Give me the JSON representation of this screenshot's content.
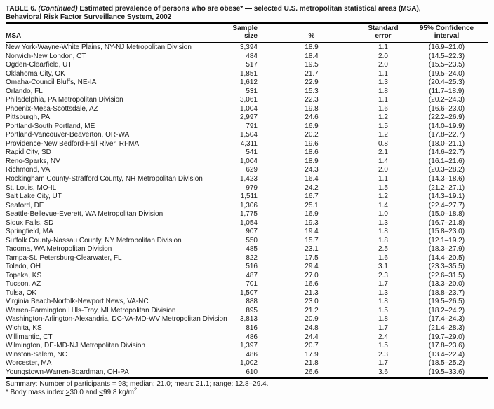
{
  "title": {
    "prefix": "TABLE 6. ",
    "continued": "(Continued)",
    "line1_rest": " Estimated prevalence of persons who are obese* — selected U.S. metropolitan statistical areas (MSA),",
    "line2": "Behavioral Risk Factor Surveillance System, 2002"
  },
  "table": {
    "columns": {
      "msa": "MSA",
      "sample_line1": "Sample",
      "sample_line2": "size",
      "percent": "%",
      "se_line1": "Standard",
      "se_line2": "error",
      "ci_line1": "95% Confidence",
      "ci_line2": "interval"
    },
    "rows": [
      {
        "msa": "New York-Wayne-White Plains, NY-NJ Metropolitan Division",
        "sample_size": "3,394",
        "percent": "18.9",
        "standard_error": "1.1",
        "ci": "(16.9–21.0)"
      },
      {
        "msa": "Norwich-New London, CT",
        "sample_size": "484",
        "percent": "18.4",
        "standard_error": "2.0",
        "ci": "(14.5–22.3)"
      },
      {
        "msa": "Ogden-Clearfield, UT",
        "sample_size": "517",
        "percent": "19.5",
        "standard_error": "2.0",
        "ci": "(15.5–23.5)"
      },
      {
        "msa": "Oklahoma City, OK",
        "sample_size": "1,851",
        "percent": "21.7",
        "standard_error": "1.1",
        "ci": "(19.5–24.0)"
      },
      {
        "msa": "Omaha-Council Bluffs, NE-IA",
        "sample_size": "1,612",
        "percent": "22.9",
        "standard_error": "1.3",
        "ci": "(20.4–25.3)"
      },
      {
        "msa": "Orlando, FL",
        "sample_size": "531",
        "percent": "15.3",
        "standard_error": "1.8",
        "ci": "(11.7–18.9)"
      },
      {
        "msa": "Philadelphia, PA Metropolitan Division",
        "sample_size": "3,061",
        "percent": "22.3",
        "standard_error": "1.1",
        "ci": "(20.2–24.3)"
      },
      {
        "msa": "Phoenix-Mesa-Scottsdale, AZ",
        "sample_size": "1,004",
        "percent": "19.8",
        "standard_error": "1.6",
        "ci": "(16.6–23.0)"
      },
      {
        "msa": "Pittsburgh, PA",
        "sample_size": "2,997",
        "percent": "24.6",
        "standard_error": "1.2",
        "ci": "(22.2–26.9)"
      },
      {
        "msa": "Portland-South Portland, ME",
        "sample_size": "791",
        "percent": "16.9",
        "standard_error": "1.5",
        "ci": "(14.0–19.9)"
      },
      {
        "msa": "Portland-Vancouver-Beaverton, OR-WA",
        "sample_size": "1,504",
        "percent": "20.2",
        "standard_error": "1.2",
        "ci": "(17.8–22.7)"
      },
      {
        "msa": "Providence-New Bedford-Fall River, RI-MA",
        "sample_size": "4,311",
        "percent": "19.6",
        "standard_error": "0.8",
        "ci": "(18.0–21.1)"
      },
      {
        "msa": "Rapid City, SD",
        "sample_size": "541",
        "percent": "18.6",
        "standard_error": "2.1",
        "ci": "(14.6–22.7)"
      },
      {
        "msa": "Reno-Sparks, NV",
        "sample_size": "1,004",
        "percent": "18.9",
        "standard_error": "1.4",
        "ci": "(16.1–21.6)"
      },
      {
        "msa": "Richmond, VA",
        "sample_size": "629",
        "percent": "24.3",
        "standard_error": "2.0",
        "ci": "(20.3–28.2)"
      },
      {
        "msa": "Rockingham County-Strafford County, NH Metropolitan Division",
        "sample_size": "1,423",
        "percent": "16.4",
        "standard_error": "1.1",
        "ci": "(14.3–18.6)"
      },
      {
        "msa": "St. Louis, MO-IL",
        "sample_size": "979",
        "percent": "24.2",
        "standard_error": "1.5",
        "ci": "(21.2–27.1)"
      },
      {
        "msa": "Salt Lake City, UT",
        "sample_size": "1,511",
        "percent": "16.7",
        "standard_error": "1.2",
        "ci": "(14.3–19.1)"
      },
      {
        "msa": "Seaford, DE",
        "sample_size": "1,306",
        "percent": "25.1",
        "standard_error": "1.4",
        "ci": "(22.4–27.7)"
      },
      {
        "msa": "Seattle-Bellevue-Everett, WA Metropolitan Division",
        "sample_size": "1,775",
        "percent": "16.9",
        "standard_error": "1.0",
        "ci": "(15.0–18.8)"
      },
      {
        "msa": "Sioux Falls, SD",
        "sample_size": "1,054",
        "percent": "19.3",
        "standard_error": "1.3",
        "ci": "(16.7–21.8)"
      },
      {
        "msa": "Springfield, MA",
        "sample_size": "907",
        "percent": "19.4",
        "standard_error": "1.8",
        "ci": "(15.8–23.0)"
      },
      {
        "msa": "Suffolk County-Nassau County, NY Metropolitan Division",
        "sample_size": "550",
        "percent": "15.7",
        "standard_error": "1.8",
        "ci": "(12.1–19.2)"
      },
      {
        "msa": "Tacoma, WA Metropolitan Division",
        "sample_size": "485",
        "percent": "23.1",
        "standard_error": "2.5",
        "ci": "(18.3–27.9)"
      },
      {
        "msa": "Tampa-St. Petersburg-Clearwater, FL",
        "sample_size": "822",
        "percent": "17.5",
        "standard_error": "1.6",
        "ci": "(14.4–20.5)"
      },
      {
        "msa": "Toledo, OH",
        "sample_size": "516",
        "percent": "29.4",
        "standard_error": "3.1",
        "ci": "(23.3–35.5)"
      },
      {
        "msa": "Topeka, KS",
        "sample_size": "487",
        "percent": "27.0",
        "standard_error": "2.3",
        "ci": "(22.6–31.5)"
      },
      {
        "msa": "Tucson, AZ",
        "sample_size": "701",
        "percent": "16.6",
        "standard_error": "1.7",
        "ci": "(13.3–20.0)"
      },
      {
        "msa": "Tulsa, OK",
        "sample_size": "1,507",
        "percent": "21.3",
        "standard_error": "1.3",
        "ci": "(18.8–23.7)"
      },
      {
        "msa": "Virginia Beach-Norfolk-Newport News, VA-NC",
        "sample_size": "888",
        "percent": "23.0",
        "standard_error": "1.8",
        "ci": "(19.5–26.5)"
      },
      {
        "msa": "Warren-Farmington Hills-Troy, MI Metropolitan Division",
        "sample_size": "895",
        "percent": "21.2",
        "standard_error": "1.5",
        "ci": "(18.2–24.2)"
      },
      {
        "msa": "Washington-Arlington-Alexandria, DC-VA-MD-WV Metropolitan Division",
        "sample_size": "3,813",
        "percent": "20.9",
        "standard_error": "1.8",
        "ci": "(17.4–24.3)"
      },
      {
        "msa": "Wichita, KS",
        "sample_size": "816",
        "percent": "24.8",
        "standard_error": "1.7",
        "ci": "(21.4–28.3)"
      },
      {
        "msa": "Willimantic, CT",
        "sample_size": "486",
        "percent": "24.4",
        "standard_error": "2.4",
        "ci": "(19.7–29.0)"
      },
      {
        "msa": "Wilmington, DE-MD-NJ Metropolitan Division",
        "sample_size": "1,397",
        "percent": "20.7",
        "standard_error": "1.5",
        "ci": "(17.8–23.6)"
      },
      {
        "msa": "Winston-Salem, NC",
        "sample_size": "486",
        "percent": "17.9",
        "standard_error": "2.3",
        "ci": "(13.4–22.4)"
      },
      {
        "msa": "Worcester, MA",
        "sample_size": "1,002",
        "percent": "21.8",
        "standard_error": "1.7",
        "ci": "(18.5–25.2)"
      },
      {
        "msa": "Youngstown-Warren-Boardman, OH-PA",
        "sample_size": "610",
        "percent": "26.6",
        "standard_error": "3.6",
        "ci": "(19.5–33.6)"
      }
    ]
  },
  "summary": "Summary: Number of participants = 98; median: 21.0; mean: 21.1; range: 12.8–29.4.",
  "footnote": {
    "marker": "* ",
    "part1": "Body mass index ",
    "gte": ">",
    "part2": "30.0 and ",
    "lte": "<",
    "part3": "99.8 kg/m",
    "sup": "2",
    "end": "."
  }
}
